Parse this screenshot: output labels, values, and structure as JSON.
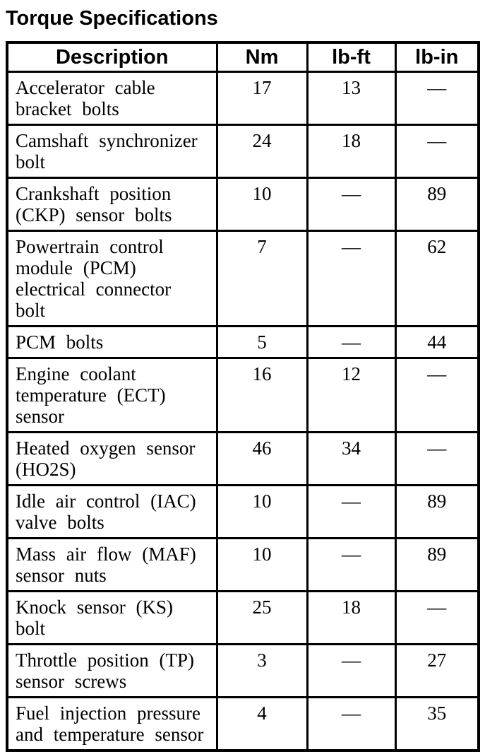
{
  "page": {
    "title": "Torque Specifications"
  },
  "table": {
    "headers": {
      "description": "Description",
      "nm": "Nm",
      "lb_ft": "lb-ft",
      "lb_in": "lb-in"
    },
    "rows": [
      {
        "description": "Accelerator cable\nbracket bolts",
        "nm": "17",
        "lb_ft": "13",
        "lb_in": "—"
      },
      {
        "description": "Camshaft synchronizer\nbolt",
        "nm": "24",
        "lb_ft": "18",
        "lb_in": "—"
      },
      {
        "description": "Crankshaft position\n(CKP) sensor bolts",
        "nm": "10",
        "lb_ft": "—",
        "lb_in": "89"
      },
      {
        "description": "Powertrain control\nmodule (PCM)\nelectrical connector\nbolt",
        "nm": "7",
        "lb_ft": "—",
        "lb_in": "62"
      },
      {
        "description": "PCM bolts",
        "nm": "5",
        "lb_ft": "—",
        "lb_in": "44"
      },
      {
        "description": "Engine coolant\ntemperature (ECT)\nsensor",
        "nm": "16",
        "lb_ft": "12",
        "lb_in": "—"
      },
      {
        "description": "Heated oxygen sensor\n(HO2S)",
        "nm": "46",
        "lb_ft": "34",
        "lb_in": "—"
      },
      {
        "description": "Idle air control (IAC)\nvalve bolts",
        "nm": "10",
        "lb_ft": "—",
        "lb_in": "89"
      },
      {
        "description": "Mass air flow (MAF)\nsensor nuts",
        "nm": "10",
        "lb_ft": "—",
        "lb_in": "89"
      },
      {
        "description": "Knock sensor (KS) bolt",
        "nm": "25",
        "lb_ft": "18",
        "lb_in": "—"
      },
      {
        "description": "Throttle position (TP)\nsensor screws",
        "nm": "3",
        "lb_ft": "—",
        "lb_in": "27"
      },
      {
        "description": "Fuel injection pressure\nand temperature sensor",
        "nm": "4",
        "lb_ft": "—",
        "lb_in": "35"
      }
    ]
  }
}
